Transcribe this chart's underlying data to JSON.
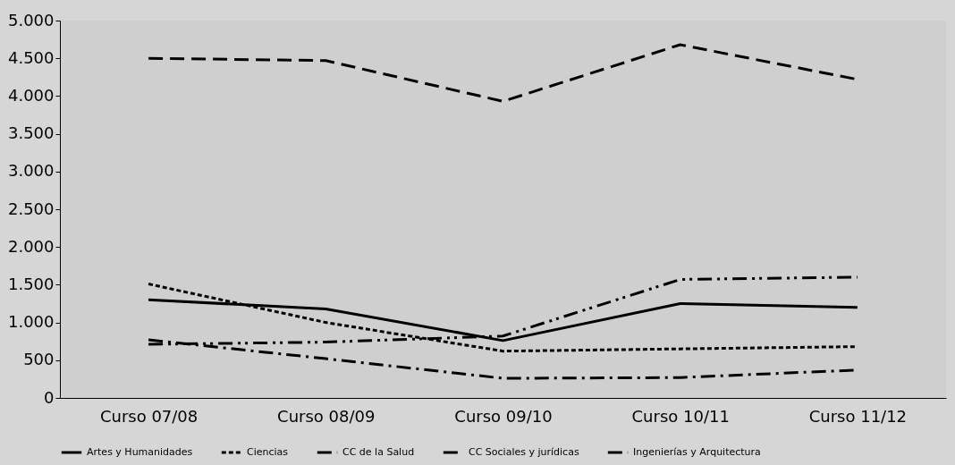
{
  "chart_data": {
    "type": "line",
    "categories": [
      "Curso 07/08",
      "Curso 08/09",
      "Curso 09/10",
      "Curso 10/11",
      "Curso 11/12"
    ],
    "series": [
      {
        "name": "Artes y Humanidades",
        "color": "#000000",
        "line_style": "solid",
        "values": [
          1300,
          1180,
          760,
          1250,
          1200
        ]
      },
      {
        "name": "Ciencias",
        "color": "#000000",
        "line_style": "dotted",
        "values": [
          1510,
          1000,
          620,
          650,
          680
        ]
      },
      {
        "name": "CC de la Salud",
        "color": "#000000",
        "line_style": "dashdotdot",
        "values": [
          710,
          740,
          820,
          1570,
          1600
        ]
      },
      {
        "name": "CC Sociales y jurídicas",
        "color": "#000000",
        "line_style": "dashed",
        "values": [
          4500,
          4470,
          3930,
          4680,
          4220
        ]
      },
      {
        "name": "Ingenierías y Arquitectura",
        "color": "#000000",
        "line_style": "dashdot",
        "values": [
          770,
          520,
          260,
          270,
          370
        ]
      }
    ],
    "ylim": [
      0,
      5000
    ],
    "yticks": [
      {
        "value": 0,
        "label": "0"
      },
      {
        "value": 500,
        "label": "500"
      },
      {
        "value": 1000,
        "label": "1.000"
      },
      {
        "value": 1500,
        "label": "1.500"
      },
      {
        "value": 2000,
        "label": "2.000"
      },
      {
        "value": 2500,
        "label": "2.500"
      },
      {
        "value": 3000,
        "label": "3.000"
      },
      {
        "value": 3500,
        "label": "3.500"
      },
      {
        "value": 4000,
        "label": "4.000"
      },
      {
        "value": 4500,
        "label": "4.500"
      },
      {
        "value": 5000,
        "label": "5.000"
      }
    ],
    "grid": false,
    "legend": "bottom",
    "marker": "none"
  }
}
